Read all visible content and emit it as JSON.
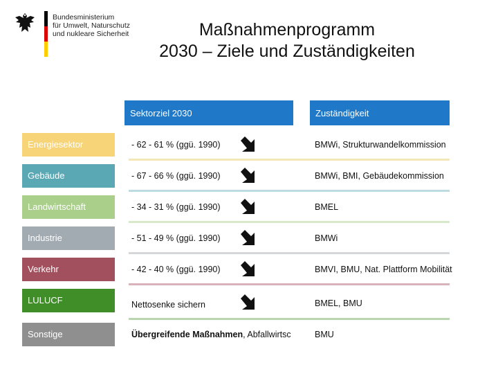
{
  "header": {
    "ministry_lines": [
      "Bundesministerium",
      "für Umwelt, Naturschutz",
      "und nukleare Sicherheit"
    ],
    "flag_colors": [
      "#000000",
      "#dd0000",
      "#ffcc00"
    ]
  },
  "title": {
    "line1": "Maßnahmenprogramm",
    "line2": "2030 – Ziele und Zuständigkeiten"
  },
  "columns": {
    "sector": "Sektorziel 2030",
    "responsibility": "Zuständigkeit",
    "header_color": "#1f78c8"
  },
  "rows": [
    {
      "sector": "Energiesektor",
      "color": "#f7d478",
      "target": "- 62 - 61 % (ggü. 1990)",
      "responsibility": "BMWi, Strukturwandelkommission",
      "sep_color": "#f3e7b8"
    },
    {
      "sector": "Gebäude",
      "color": "#5ba8b5",
      "target": "- 67 - 66 % (ggü. 1990)",
      "responsibility": "BMWi, BMI, Gebäudekommission",
      "sep_color": "#bcdce2"
    },
    {
      "sector": "Landwirtschaft",
      "color": "#a9cf8b",
      "target": "- 34 - 31 % (ggü. 1990)",
      "responsibility": "BMEL",
      "sep_color": "#d7e9c9"
    },
    {
      "sector": "Industrie",
      "color": "#a3abb2",
      "target": "- 51 - 49 % (ggü. 1990)",
      "responsibility": "BMWi",
      "sep_color": "#d3d7da"
    },
    {
      "sector": "Verkehr",
      "color": "#a3505e",
      "target": "- 42 - 40 % (ggü. 1990)",
      "responsibility": "BMVI, BMU, Nat. Plattform Mobilität",
      "sep_color": "#d8b3b9"
    },
    {
      "sector": "LULUCF",
      "color": "#3f8e27",
      "target": "Nettosenke sichern",
      "responsibility": "BMEL, BMU",
      "sep_color": "#b9d6ae"
    },
    {
      "sector": "Sonstige",
      "color": "#8f8f8f",
      "target_bold": "Übergreifende Maßnahmen",
      "target_rest": ", Abfallwirtsc",
      "responsibility": "BMU",
      "sep_color": "#ffffff"
    }
  ]
}
